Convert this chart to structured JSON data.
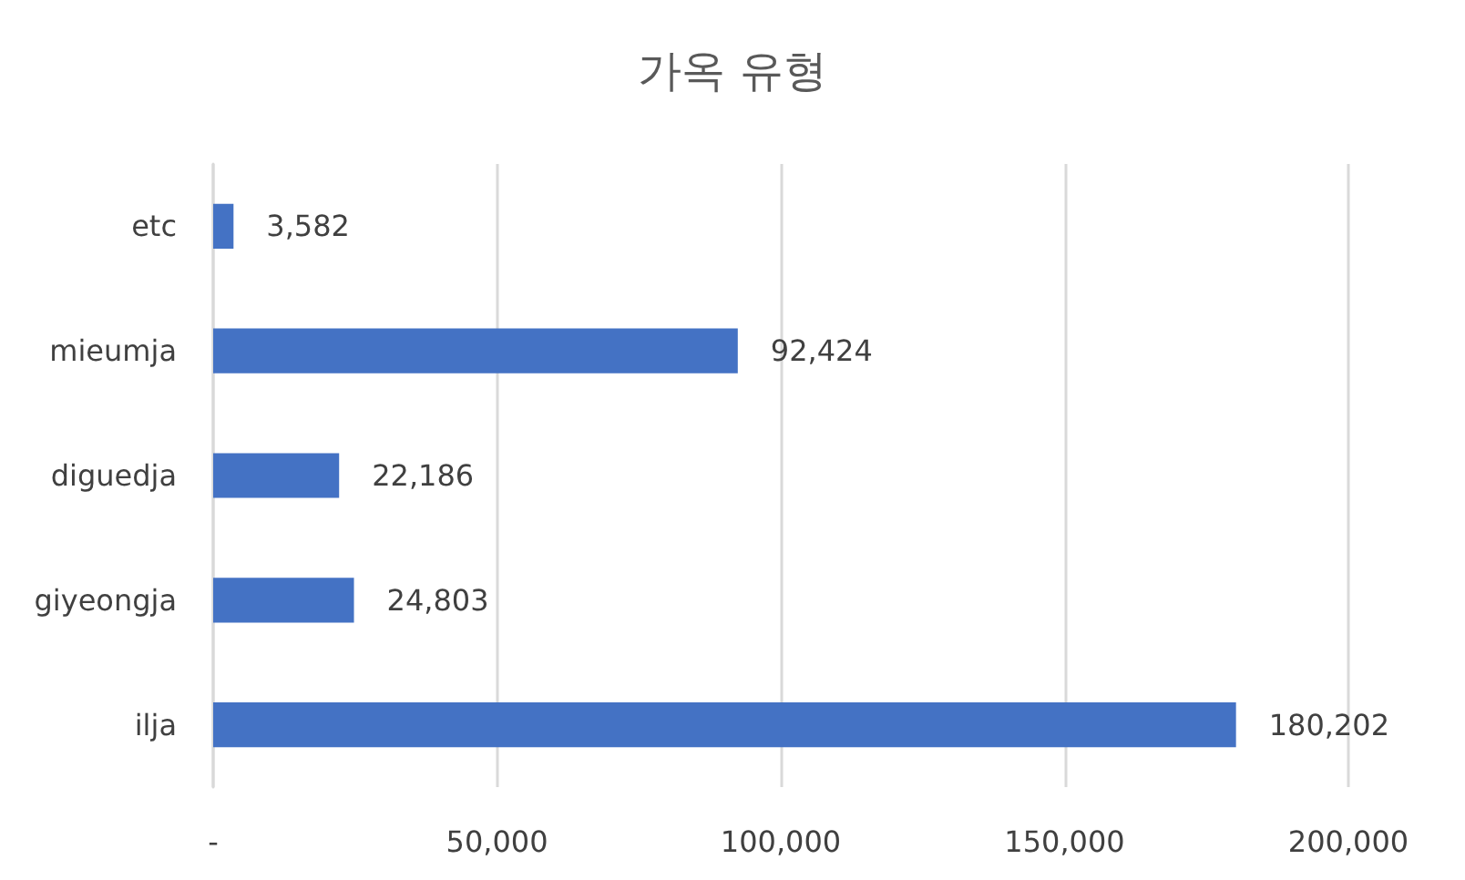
{
  "chart_data": {
    "type": "bar",
    "title": "가옥 유형",
    "orientation": "horizontal",
    "categories": [
      "etc",
      "mieumja",
      "diguedja",
      "giyeongja",
      "ilja"
    ],
    "values": [
      3582,
      92424,
      22186,
      24803,
      180202
    ],
    "value_labels": [
      "3,582",
      "92,424",
      "22,186",
      "24,803",
      "180,202"
    ],
    "color": "#4472c4",
    "xlim": [
      0,
      200000
    ],
    "xticks": [
      {
        "value": 0,
        "label": "-"
      },
      {
        "value": 50000,
        "label": "50,000"
      },
      {
        "value": 100000,
        "label": "100,000"
      },
      {
        "value": 150000,
        "label": "150,000"
      },
      {
        "value": 200000,
        "label": "200,000"
      }
    ],
    "grid": "x"
  }
}
